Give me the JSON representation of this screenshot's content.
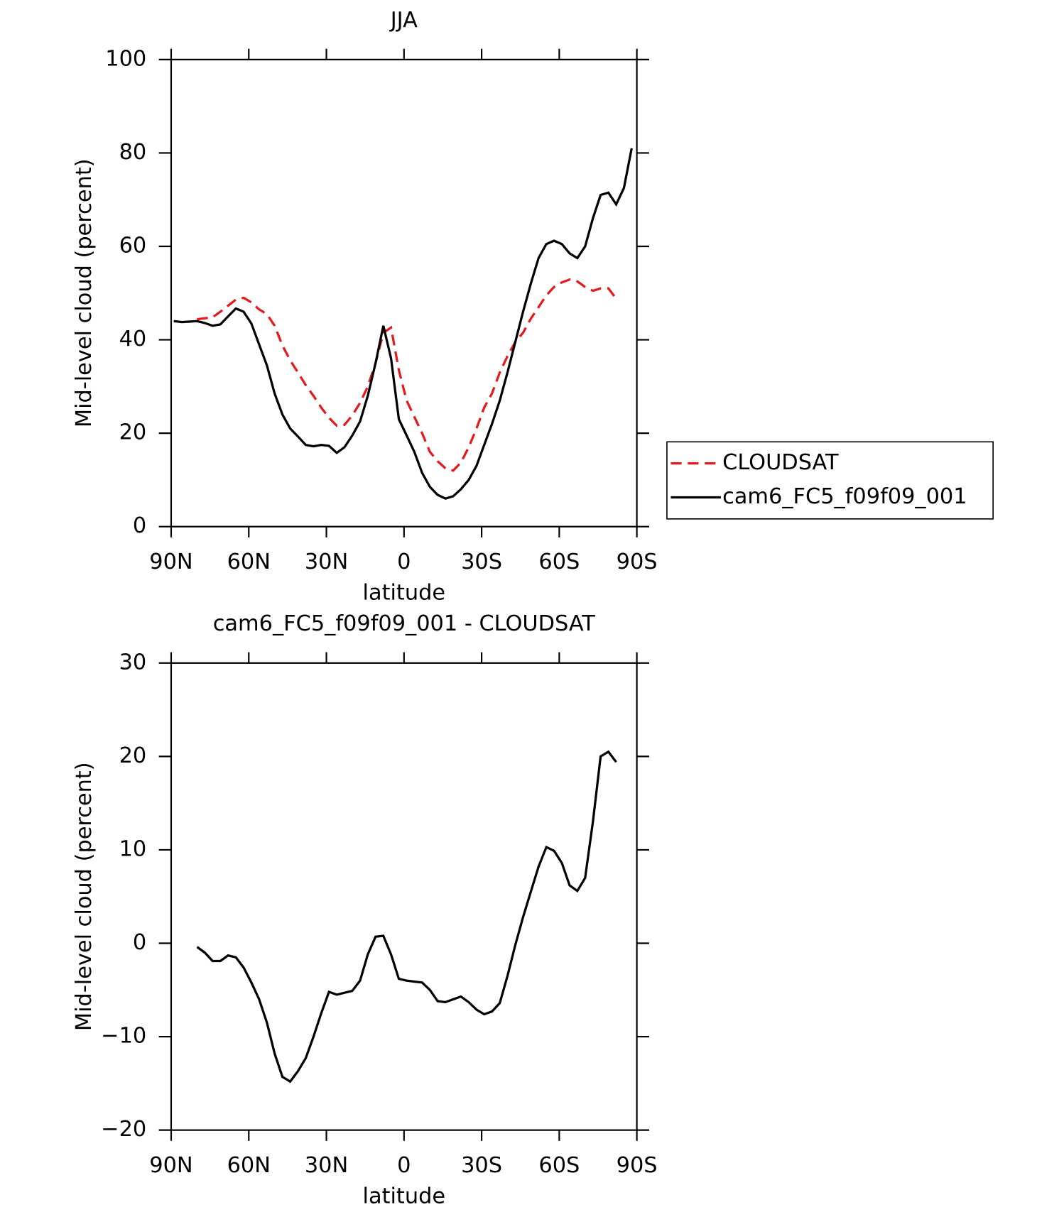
{
  "chart_data": [
    {
      "type": "line",
      "title": "JJA",
      "xlabel": "latitude",
      "ylabel": "Mid-level cloud (percent)",
      "x": [
        89,
        86,
        83,
        80,
        77,
        74,
        71,
        68,
        65,
        62,
        59,
        56,
        53,
        50,
        47,
        44,
        41,
        38,
        35,
        32,
        29,
        26,
        23,
        20,
        17,
        14,
        11,
        8,
        5,
        2,
        -1,
        -4,
        -7,
        -10,
        -13,
        -16,
        -19,
        -22,
        -25,
        -28,
        -31,
        -34,
        -37,
        -40,
        -43,
        -46,
        -49,
        -52,
        -55,
        -58,
        -61,
        -64,
        -67,
        -70,
        -73,
        -76,
        -79,
        -82,
        -85,
        -88
      ],
      "xlim": [
        90,
        -90
      ],
      "xticks": [
        {
          "value": 90,
          "label": "90N"
        },
        {
          "value": 60,
          "label": "60N"
        },
        {
          "value": 30,
          "label": "30N"
        },
        0,
        {
          "value": -30,
          "label": "30S"
        },
        {
          "value": -60,
          "label": "60S"
        },
        {
          "value": -90,
          "label": "90S"
        }
      ],
      "ylim": [
        0,
        100
      ],
      "yticks": [
        0,
        20,
        40,
        60,
        80,
        100
      ],
      "series": [
        {
          "name": "CLOUDSAT",
          "color": "#e41a1c",
          "dash": true,
          "values": [
            null,
            null,
            null,
            44.4,
            44.6,
            44.8,
            46,
            47.3,
            48.6,
            49,
            48,
            46.5,
            45.5,
            43,
            38.8,
            35.6,
            33,
            30.3,
            28,
            25.5,
            23.3,
            21.6,
            21.8,
            23.8,
            26.5,
            30,
            35,
            41.5,
            42.6,
            33.5,
            27,
            23.5,
            20,
            16,
            14,
            12.5,
            12,
            13.7,
            17,
            21,
            25.5,
            28.5,
            33,
            36.5,
            39.5,
            41.5,
            44.5,
            47,
            49.5,
            51.3,
            52.3,
            52.9,
            52.5,
            51.3,
            50.5,
            51,
            51,
            48.8,
            null,
            null
          ]
        },
        {
          "name": "cam6_FC5_f09f09_001",
          "color": "#000000",
          "dash": false,
          "values": [
            44,
            43.8,
            43.9,
            44,
            43.6,
            43,
            43.3,
            45,
            46.7,
            46,
            43.5,
            39,
            34.5,
            28.5,
            24,
            21,
            19.3,
            17.5,
            17.2,
            17.5,
            17.3,
            15.8,
            17,
            19.5,
            22.5,
            28,
            35,
            43,
            36,
            23,
            19.5,
            16,
            11.5,
            8.5,
            6.8,
            6,
            6.5,
            8,
            10,
            13,
            17.5,
            22,
            27,
            33,
            39.5,
            46,
            52,
            57.5,
            60.5,
            61.2,
            60.5,
            58.5,
            57.5,
            60,
            66,
            71,
            71.5,
            69,
            72.5,
            81
          ]
        }
      ]
    },
    {
      "type": "line",
      "title": "cam6_FC5_f09f09_001 - CLOUDSAT",
      "xlabel": "latitude",
      "ylabel": "Mid-level cloud (percent)",
      "x": [
        89,
        86,
        83,
        80,
        77,
        74,
        71,
        68,
        65,
        62,
        59,
        56,
        53,
        50,
        47,
        44,
        41,
        38,
        35,
        32,
        29,
        26,
        23,
        20,
        17,
        14,
        11,
        8,
        5,
        2,
        -1,
        -4,
        -7,
        -10,
        -13,
        -16,
        -19,
        -22,
        -25,
        -28,
        -31,
        -34,
        -37,
        -40,
        -43,
        -46,
        -49,
        -52,
        -55,
        -58,
        -61,
        -64,
        -67,
        -70,
        -73,
        -76,
        -79,
        -82,
        -85,
        -88
      ],
      "xlim": [
        90,
        -90
      ],
      "xticks": [
        {
          "value": 90,
          "label": "90N"
        },
        {
          "value": 60,
          "label": "60N"
        },
        {
          "value": 30,
          "label": "30N"
        },
        0,
        {
          "value": -30,
          "label": "30S"
        },
        {
          "value": -60,
          "label": "60S"
        },
        {
          "value": -90,
          "label": "90S"
        }
      ],
      "ylim": [
        -20,
        30
      ],
      "yticks": [
        {
          "value": -20,
          "label": "−20"
        },
        {
          "value": -10,
          "label": "−10"
        },
        0,
        10,
        20,
        30
      ],
      "series": [
        {
          "color": "#000000",
          "dash": false,
          "values": [
            null,
            null,
            null,
            -0.4,
            -1,
            -1.9,
            -1.9,
            -1.3,
            -1.5,
            -2.6,
            -4.2,
            -6,
            -8.5,
            -11.8,
            -14.3,
            -14.8,
            -13.7,
            -12.3,
            -10,
            -7.5,
            -5.2,
            -5.5,
            -5.3,
            -5.1,
            -4,
            -1.2,
            0.7,
            0.8,
            -1.2,
            -3.8,
            -4,
            -4.1,
            -4.2,
            -5,
            -6.2,
            -6.3,
            -6,
            -5.7,
            -6.3,
            -7.1,
            -7.6,
            -7.3,
            -6.4,
            -3.5,
            -0.2,
            2.8,
            5.5,
            8.2,
            10.3,
            9.9,
            8.6,
            6.2,
            5.6,
            7,
            13,
            20,
            20.5,
            19.4,
            null,
            null
          ]
        }
      ]
    }
  ]
}
